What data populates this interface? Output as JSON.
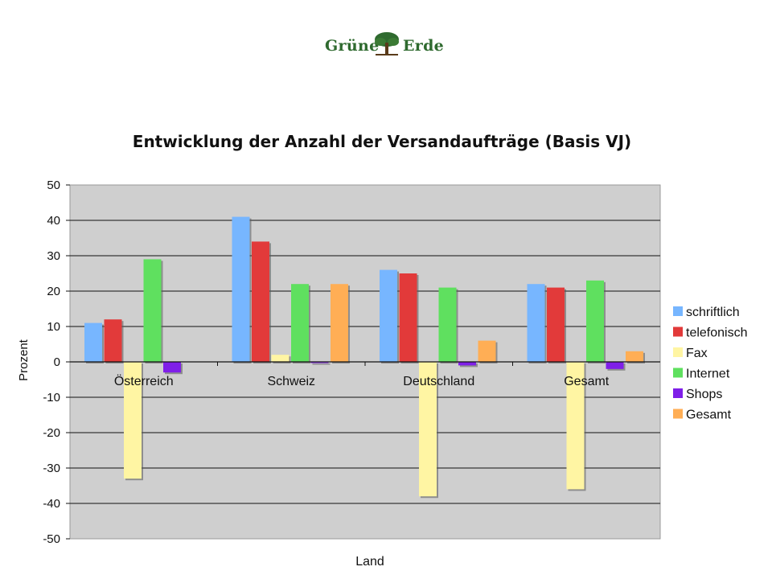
{
  "logo": {
    "left_word": "Grüne",
    "right_word": "Erde"
  },
  "chart_data": {
    "type": "bar",
    "title": "Entwicklung der Anzahl der Versandaufträge (Basis VJ)",
    "xlabel": "Land",
    "ylabel": "Prozent",
    "ylim": [
      -50,
      50
    ],
    "yticks": [
      50,
      40,
      30,
      20,
      10,
      0,
      -10,
      -20,
      -30,
      -40,
      -50
    ],
    "categories": [
      "Österreich",
      "Schweiz",
      "Deutschland",
      "Gesamt"
    ],
    "series": [
      {
        "name": "schriftlich",
        "color": "#77b6ff",
        "values": [
          11,
          41,
          26,
          22
        ]
      },
      {
        "name": "telefonisch",
        "color": "#e23a3a",
        "values": [
          12,
          34,
          25,
          21
        ]
      },
      {
        "name": "Fax",
        "color": "#fff5a3",
        "values": [
          -33,
          2,
          -38,
          -36
        ]
      },
      {
        "name": "Internet",
        "color": "#5fe05f",
        "values": [
          29,
          22,
          21,
          23
        ]
      },
      {
        "name": "Shops",
        "color": "#7f1fe8",
        "values": [
          -3,
          -0.3,
          -1,
          -2
        ]
      },
      {
        "name": "Gesamt",
        "color": "#ffae55",
        "values": [
          0,
          22,
          6,
          3
        ]
      }
    ],
    "grid": true,
    "legend": "right"
  }
}
